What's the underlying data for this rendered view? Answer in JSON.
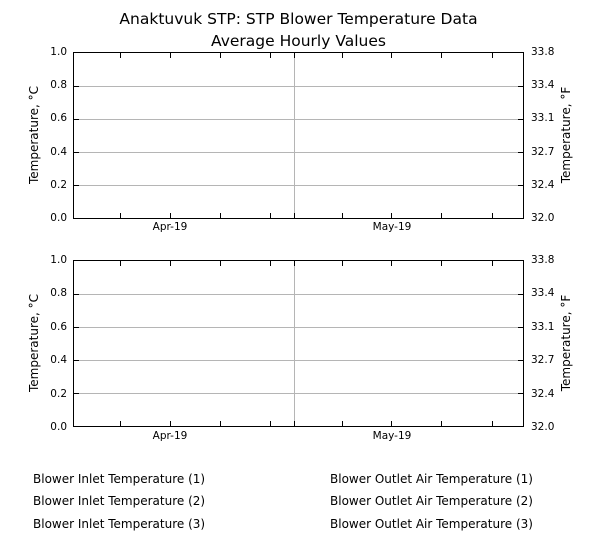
{
  "chart_data": {
    "type": "line",
    "title": "Anaktuvuk STP: STP Blower Temperature Data",
    "subtitle": "Average Hourly Values",
    "subplots": [
      {
        "name": "top-panel",
        "x_tick_labels": [
          "Apr-19",
          "May-19"
        ],
        "ylabel_left": "Temperature, °C",
        "ylabel_right": "Temperature, °F",
        "ylim_left": [
          0.0,
          1.0
        ],
        "ylim_right": [
          32.0,
          33.8
        ],
        "yticks_left": [
          "1.0",
          "0.8",
          "0.6",
          "0.4",
          "0.2",
          "0.0"
        ],
        "yticks_right": [
          "33.8",
          "33.4",
          "33.1",
          "32.7",
          "32.4",
          "32.0"
        ],
        "grid": true,
        "series": []
      },
      {
        "name": "bottom-panel",
        "x_tick_labels": [
          "Apr-19",
          "May-19"
        ],
        "ylabel_left": "Temperature, °C",
        "ylabel_right": "Temperature, °F",
        "ylim_left": [
          0.0,
          1.0
        ],
        "ylim_right": [
          32.0,
          33.8
        ],
        "yticks_left": [
          "1.0",
          "0.8",
          "0.6",
          "0.4",
          "0.2",
          "0.0"
        ],
        "yticks_right": [
          "33.8",
          "33.4",
          "33.1",
          "32.7",
          "32.4",
          "32.0"
        ],
        "grid": true,
        "series": []
      }
    ],
    "legend": {
      "position": "below charts, two columns",
      "left": [
        "Blower Inlet Temperature (1)",
        "Blower Inlet Temperature (2)",
        "Blower Inlet Temperature (3)"
      ],
      "right": [
        "Blower Outlet Air Temperature (1)",
        "Blower Outlet Air Temperature (2)",
        "Blower Outlet Air Temperature (3)"
      ]
    }
  },
  "layout": {
    "x_tick_pcts": [
      10.4,
      21.5,
      32.6,
      43.7,
      49.2,
      59.9,
      70.8,
      81.8,
      93.1
    ],
    "v_grid_pcts": [
      49.2
    ],
    "y_tick_pcts": [
      20,
      40,
      60,
      80
    ],
    "h_grid_pcts": [
      20,
      40,
      60,
      80
    ]
  },
  "colors": {
    "background": "#ffffff",
    "axis": "#000000",
    "grid": "#b5b5b5",
    "text": "#000000"
  }
}
